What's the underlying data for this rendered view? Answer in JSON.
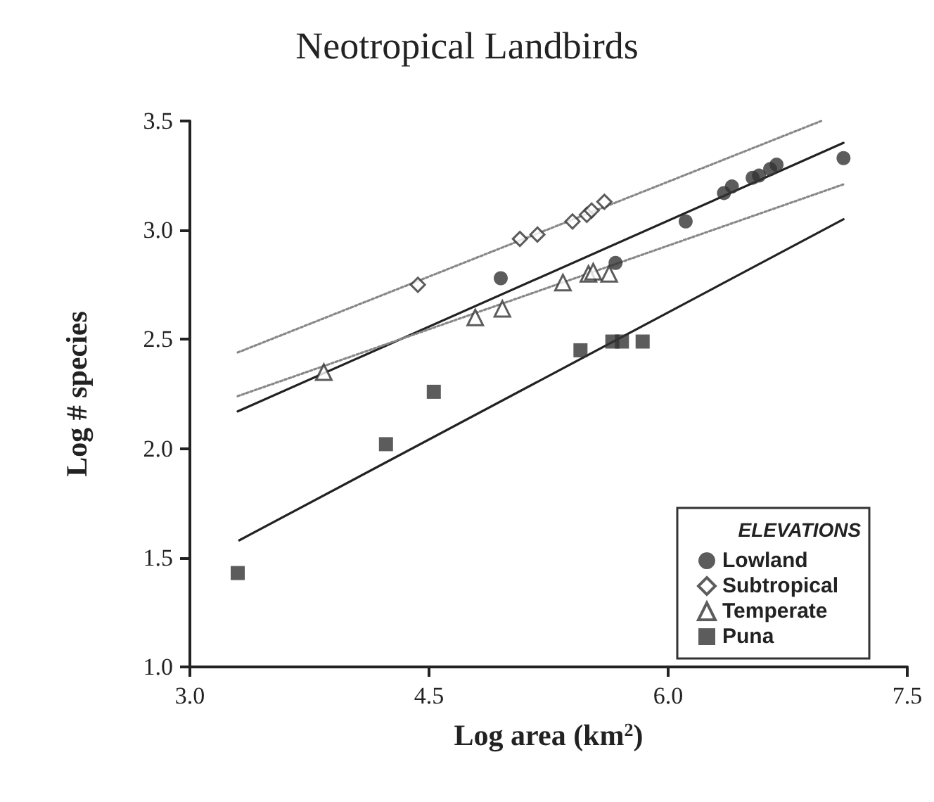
{
  "chart_data": {
    "type": "scatter",
    "title": "Neotropical Landbirds",
    "xlabel": "Log area (km$^{2}$)",
    "ylabel": "Log # species",
    "legend_title": "ELEVATIONS",
    "legend": "bottom right",
    "grid": false,
    "xlim": [
      3.0,
      7.5
    ],
    "xticks": [
      {
        "value": 3,
        "label": "3.0"
      },
      {
        "value": 4.5,
        "label": "4.5"
      },
      {
        "value": 6,
        "label": "6.0"
      },
      {
        "value": 7.5,
        "label": "7.5"
      }
    ],
    "ylim": [
      1.0,
      3.5
    ],
    "yticks": [
      {
        "value": 1,
        "label": "1.0"
      },
      {
        "value": 1.5,
        "label": "1.5"
      },
      {
        "value": 2,
        "label": "2.0"
      },
      {
        "value": 2.5,
        "label": "2.5"
      },
      {
        "value": 3,
        "label": "3.0"
      },
      {
        "value": 3.5,
        "label": "3.5"
      }
    ],
    "series": [
      {
        "name": "Lowland",
        "color": "#333333",
        "marker": "circle",
        "x": [
          4.95,
          5.67,
          6.11,
          6.35,
          6.4,
          6.53,
          6.57,
          6.64,
          6.68,
          7.1
        ],
        "values": [
          2.78,
          2.85,
          3.04,
          3.17,
          3.2,
          3.24,
          3.25,
          3.28,
          3.3,
          3.33
        ]
      },
      {
        "name": "Subtropical",
        "color": "#333333",
        "marker": "diamond",
        "x": [
          4.43,
          5.07,
          5.18,
          5.4,
          5.49,
          5.52,
          5.6
        ],
        "values": [
          2.75,
          2.96,
          2.98,
          3.04,
          3.07,
          3.09,
          3.13
        ]
      },
      {
        "name": "Temperate",
        "color": "#333333",
        "marker": "triangle",
        "x": [
          3.84,
          4.79,
          4.96,
          5.34,
          5.5,
          5.53,
          5.63
        ],
        "values": [
          2.35,
          2.6,
          2.64,
          2.76,
          2.8,
          2.81,
          2.8
        ]
      },
      {
        "name": "Puna",
        "color": "#333333",
        "marker": "square",
        "x": [
          3.3,
          4.23,
          4.53,
          5.45,
          5.65,
          5.71,
          5.84
        ],
        "values": [
          1.43,
          2.02,
          2.26,
          2.45,
          2.49,
          2.49,
          2.49
        ]
      },
      {
        "type": "line",
        "color": "#222222",
        "line_style": "solid",
        "marker": "none",
        "x": [
          3.3,
          7.1
        ],
        "values": [
          2.17,
          3.4
        ]
      },
      {
        "type": "line",
        "color": "#888888",
        "line_style": "dotted",
        "marker": "none",
        "x": [
          3.3,
          6.96
        ],
        "values": [
          2.44,
          3.5
        ]
      },
      {
        "type": "line",
        "color": "#888888",
        "line_style": "dotted",
        "marker": "none",
        "x": [
          3.3,
          7.1
        ],
        "values": [
          2.24,
          3.21
        ]
      },
      {
        "type": "line",
        "color": "#222222",
        "line_style": "solid",
        "marker": "none",
        "x": [
          3.31,
          7.1
        ],
        "values": [
          1.58,
          3.05
        ]
      }
    ]
  }
}
